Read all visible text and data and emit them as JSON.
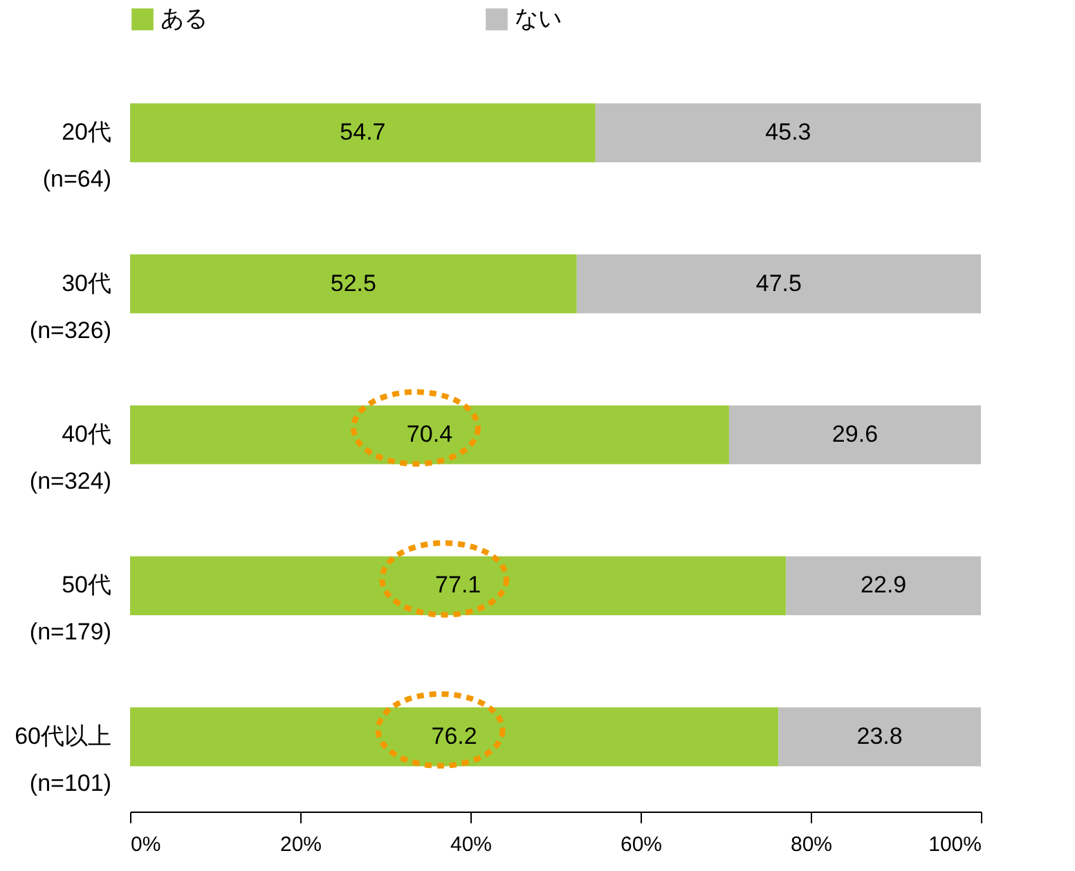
{
  "chart_data": {
    "type": "bar",
    "orientation": "horizontal",
    "stacked": true,
    "data_labels": true,
    "legend": "top",
    "grid": false,
    "categories": [
      "20代\n(n=64)",
      "30代\n(n=326)",
      "40代\n(n=324)",
      "50代\n(n=179)",
      "60代以上\n(n=101)"
    ],
    "series": [
      {
        "name": "ある",
        "color": "#9ccc3c",
        "values": [
          54.7,
          52.5,
          70.4,
          77.1,
          76.2
        ]
      },
      {
        "name": "ない",
        "color": "#c0c0c0",
        "values": [
          45.3,
          47.5,
          29.6,
          22.9,
          23.8
        ]
      }
    ],
    "xlim": [
      0,
      100
    ],
    "xticks": [
      {
        "value": 0,
        "label": "0%"
      },
      {
        "value": 20,
        "label": "20%"
      },
      {
        "value": 40,
        "label": "40%"
      },
      {
        "value": 60,
        "label": "60%"
      },
      {
        "value": 80,
        "label": "80%"
      },
      {
        "value": 100,
        "label": "100%"
      }
    ]
  }
}
